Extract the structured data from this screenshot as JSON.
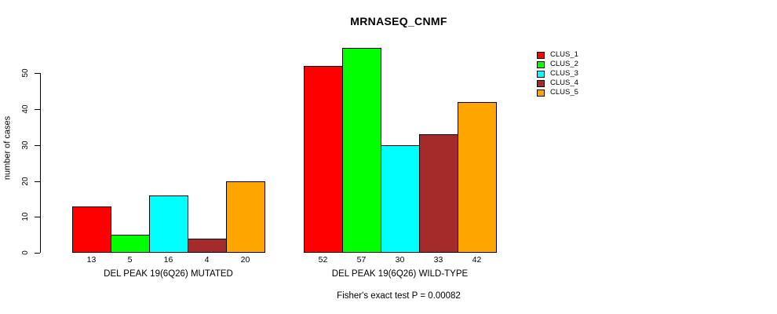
{
  "chart_data": {
    "type": "bar",
    "title": "MRNASEQ_CNMF",
    "xlabel": "",
    "ylabel": "number of cases",
    "ylim": [
      0,
      57
    ],
    "yticks": [
      0,
      10,
      20,
      30,
      40,
      50
    ],
    "grid": false,
    "legend_position": "right",
    "bar_value_labels_shown": true,
    "categories": [
      "DEL PEAK 19(6Q26) MUTATED",
      "DEL PEAK 19(6Q26) WILD-TYPE"
    ],
    "series": [
      {
        "name": "CLUS_1",
        "color": "#FF0000",
        "values": [
          13,
          52
        ]
      },
      {
        "name": "CLUS_2",
        "color": "#00FF00",
        "values": [
          5,
          57
        ]
      },
      {
        "name": "CLUS_3",
        "color": "#00FFFF",
        "values": [
          16,
          30
        ]
      },
      {
        "name": "CLUS_4",
        "color": "#A52A2A",
        "values": [
          4,
          33
        ]
      },
      {
        "name": "CLUS_5",
        "color": "#FFA500",
        "values": [
          20,
          42
        ]
      }
    ],
    "annotation": "Fisher's exact test P = 0.00082"
  }
}
